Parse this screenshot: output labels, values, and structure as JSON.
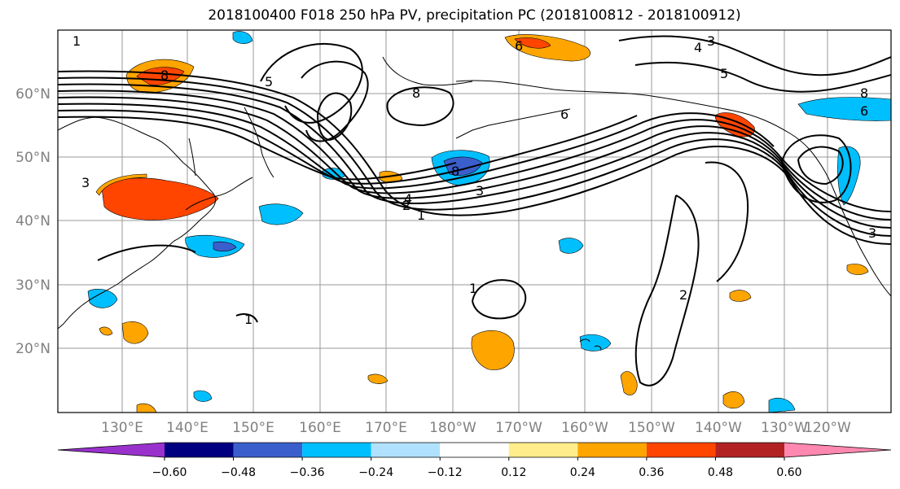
{
  "title": "2018100400 F018 250 hPa PV, precipitation PC (2018100812 - 2018100912)",
  "lat_labels": [
    "20°N",
    "30°N",
    "40°N",
    "50°N",
    "60°N"
  ],
  "lon_labels": [
    "130°E",
    "140°E",
    "150°E",
    "160°E",
    "170°E",
    "180°W",
    "170°W",
    "160°W",
    "150°W",
    "140°W",
    "130°W",
    "120°W"
  ],
  "colorbar": {
    "ticks": [
      "−0.60",
      "−0.48",
      "−0.36",
      "−0.24",
      "−0.12",
      "0.12",
      "0.24",
      "0.36",
      "0.48",
      "0.60"
    ],
    "colors": [
      "#9932cc",
      "#000080",
      "#3a5fcd",
      "#00bfff",
      "#b0e2ff",
      "#ffffff",
      "#ffec8b",
      "#ffa500",
      "#ff4500",
      "#b22222",
      "#ff88b0"
    ]
  },
  "contour_labels": [
    "1",
    "2",
    "3",
    "4",
    "5",
    "6",
    "8"
  ],
  "colors": {
    "gridline": "#9a9a9a",
    "contour": "#000000",
    "coast": "#000000"
  }
}
